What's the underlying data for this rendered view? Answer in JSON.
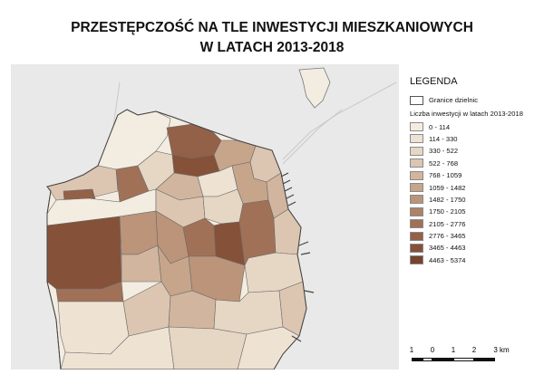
{
  "title": {
    "line1": "PRZESTĘPCZOŚĆ  NA TLE INWESTYCJI MIESZKANIOWYCH",
    "line2": "W LATACH 2013-2018"
  },
  "legend": {
    "heading": "LEGENDA",
    "boundaries_label": "Granice dzielnic",
    "classes_title": "Liczba inwestycji w latach 2013-2018",
    "classes": [
      {
        "label": "0 - 114",
        "color": "#f3ece0"
      },
      {
        "label": "114 - 330",
        "color": "#eee2d3"
      },
      {
        "label": "330 - 522",
        "color": "#e6d6c4"
      },
      {
        "label": "522 - 768",
        "color": "#dcc6b1"
      },
      {
        "label": "768 - 1059",
        "color": "#d1b59e"
      },
      {
        "label": "1059 - 1482",
        "color": "#c6a58b"
      },
      {
        "label": "1482 - 1750",
        "color": "#bb9479"
      },
      {
        "label": "1750 - 2105",
        "color": "#ae8267"
      },
      {
        "label": "2105 - 2776",
        "color": "#a17157"
      },
      {
        "label": "2776 - 3465",
        "color": "#936048"
      },
      {
        "label": "3465 - 4463",
        "color": "#855139"
      },
      {
        "label": "4463 - 5374",
        "color": "#76432d"
      }
    ]
  },
  "scalebar": {
    "labels": [
      "1",
      "0",
      "1",
      "2",
      "3 km"
    ]
  }
}
